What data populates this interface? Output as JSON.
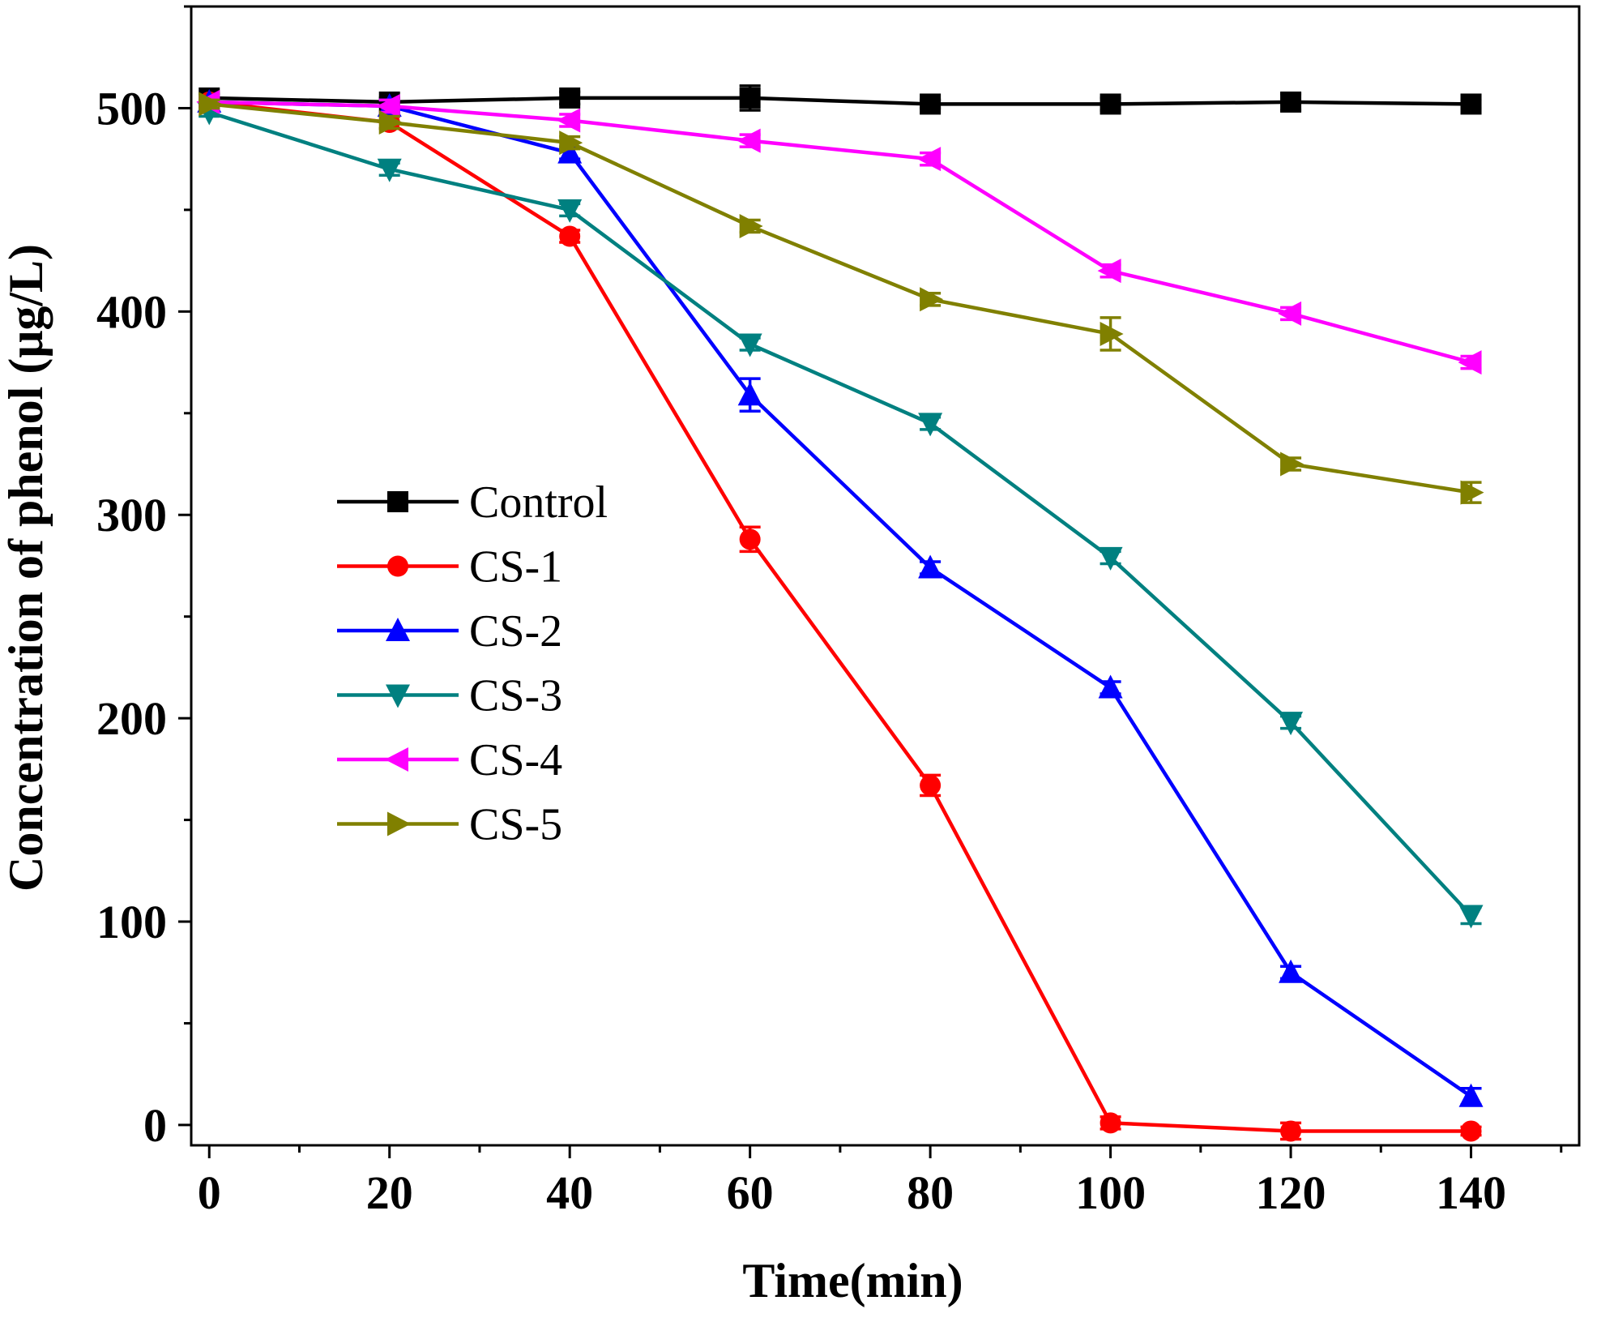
{
  "chart_data": {
    "type": "line",
    "title": "",
    "xlabel": "Time(min)",
    "ylabel": "Concentration of phenol (μg/L)",
    "x": [
      0,
      20,
      40,
      60,
      80,
      100,
      120,
      140
    ],
    "xlim": [
      -2,
      152
    ],
    "ylim": [
      -10,
      550
    ],
    "x_ticks": [
      0,
      20,
      40,
      60,
      80,
      100,
      120,
      140
    ],
    "x_tick_labels": [
      "0",
      "20",
      "40",
      "60",
      "80",
      "100",
      "120",
      "140"
    ],
    "y_ticks": [
      0,
      100,
      200,
      300,
      400,
      500
    ],
    "y_tick_labels": [
      "0",
      "100",
      "200",
      "300",
      "400",
      "500"
    ],
    "grid": false,
    "legend_position": "center-left",
    "series": [
      {
        "name": "Control",
        "color": "#000000",
        "marker": "square",
        "values": [
          505,
          503,
          505,
          505,
          502,
          502,
          503,
          502
        ],
        "errors": [
          2,
          2,
          3,
          6,
          2,
          3,
          4,
          2
        ]
      },
      {
        "name": "CS-1",
        "color": "#ff0000",
        "marker": "circle",
        "values": [
          503,
          493,
          437,
          288,
          167,
          1,
          -3,
          -3
        ],
        "errors": [
          2,
          3,
          3,
          6,
          5,
          3,
          4,
          2
        ]
      },
      {
        "name": "CS-2",
        "color": "#0000ff",
        "marker": "triangle-up",
        "values": [
          503,
          501,
          478,
          359,
          274,
          215,
          75,
          14
        ],
        "errors": [
          2,
          3,
          3,
          8,
          3,
          3,
          3,
          4
        ]
      },
      {
        "name": "CS-3",
        "color": "#008080",
        "marker": "triangle-down",
        "values": [
          498,
          470,
          450,
          384,
          345,
          279,
          198,
          103
        ],
        "errors": [
          2,
          3,
          3,
          3,
          3,
          3,
          3,
          4
        ]
      },
      {
        "name": "CS-4",
        "color": "#ff00ff",
        "marker": "triangle-left",
        "values": [
          503,
          501,
          494,
          484,
          475,
          420,
          399,
          375
        ],
        "errors": [
          2,
          3,
          3,
          3,
          3,
          3,
          3,
          3
        ]
      },
      {
        "name": "CS-5",
        "color": "#808000",
        "marker": "triangle-right",
        "values": [
          502,
          493,
          483,
          442,
          406,
          389,
          325,
          311
        ],
        "errors": [
          2,
          3,
          3,
          3,
          3,
          8,
          3,
          5
        ]
      }
    ]
  }
}
